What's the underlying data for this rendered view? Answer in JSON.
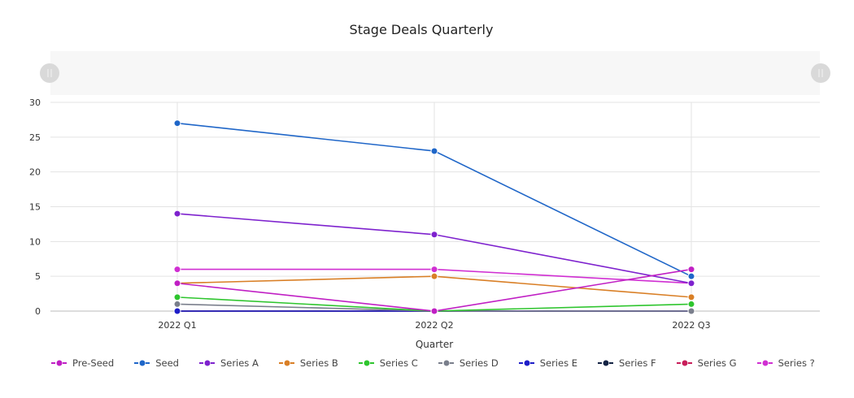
{
  "chart_data": {
    "type": "line",
    "title": "Stage Deals Quarterly",
    "xlabel": "Quarter",
    "ylabel": "",
    "categories": [
      "2022 Q1",
      "2022 Q2",
      "2022 Q3"
    ],
    "ylim": [
      0,
      30
    ],
    "yticks": [
      0,
      5,
      10,
      15,
      20,
      25,
      30
    ],
    "grid": true,
    "legend_position": "bottom",
    "series": [
      {
        "name": "Pre-Seed",
        "color": "#c01fc4",
        "values": [
          4,
          0,
          6
        ]
      },
      {
        "name": "Seed",
        "color": "#1f66c8",
        "values": [
          27,
          23,
          5
        ]
      },
      {
        "name": "Series A",
        "color": "#7e22ce",
        "values": [
          14,
          11,
          4
        ]
      },
      {
        "name": "Series B",
        "color": "#d97f26",
        "values": [
          4,
          5,
          2
        ]
      },
      {
        "name": "Series C",
        "color": "#2ec52e",
        "values": [
          2,
          0,
          1
        ]
      },
      {
        "name": "Series D",
        "color": "#7a7f8c",
        "values": [
          1,
          0,
          0
        ]
      },
      {
        "name": "Series E",
        "color": "#1e1ec8",
        "values": [
          0,
          0,
          0
        ]
      },
      {
        "name": "Series F",
        "color": "#142344",
        "values": [
          0,
          0,
          0
        ]
      },
      {
        "name": "Series G",
        "color": "#c81e5a",
        "values": [
          0,
          0,
          0
        ]
      },
      {
        "name": "Series ?",
        "color": "#d02fd2",
        "values": [
          6,
          6,
          4
        ]
      }
    ]
  },
  "brush": {
    "start": 0,
    "end": 1
  }
}
